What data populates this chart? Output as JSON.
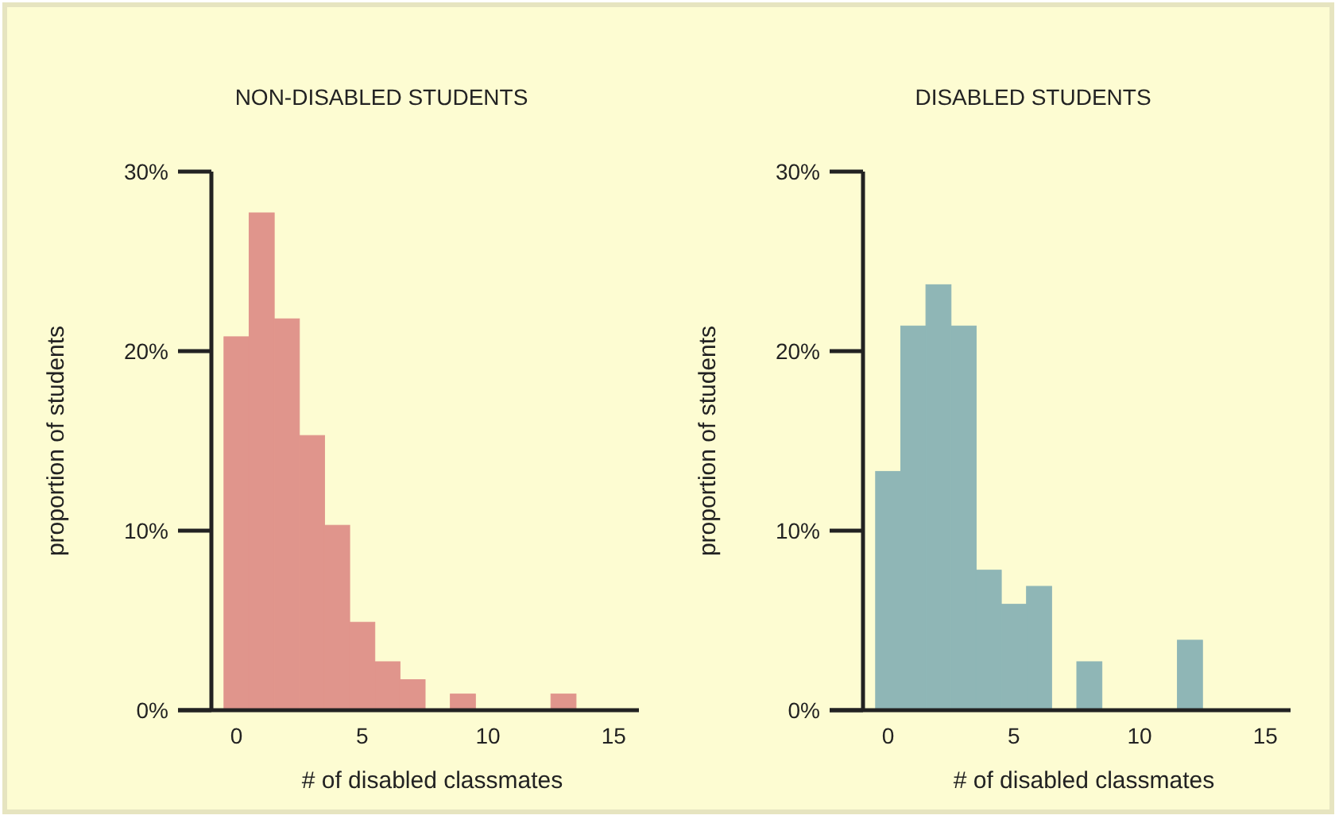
{
  "chart_data": [
    {
      "type": "histogram",
      "title": "NON-DISABLED STUDENTS",
      "xlabel": "# of disabled classmates",
      "ylabel": "proportion of students",
      "color": "#e0958c",
      "bins": [
        -0.5,
        0.5,
        1.5,
        2.5,
        3.5,
        4.5,
        5.5,
        6.5,
        7.5,
        8.5,
        9.5,
        10.5,
        11.5,
        12.5,
        13.5
      ],
      "values": [
        20.8,
        27.7,
        21.8,
        15.3,
        10.3,
        4.9,
        2.7,
        1.7,
        0,
        0.9,
        0,
        0,
        0,
        0.9
      ],
      "xlim": [
        -1,
        16
      ],
      "xticks": [
        0,
        5,
        10,
        15
      ],
      "ylim": [
        0,
        30
      ],
      "yticks": [
        {
          "value": 0,
          "label": "0%"
        },
        {
          "value": 10,
          "label": "10%"
        },
        {
          "value": 20,
          "label": "20%"
        },
        {
          "value": 30,
          "label": "30%"
        }
      ],
      "grid": false
    },
    {
      "type": "histogram",
      "title": "DISABLED STUDENTS",
      "xlabel": "# of disabled classmates",
      "ylabel": "proportion of students",
      "color": "#8fb6b6",
      "bins": [
        -0.5,
        0.5,
        1.5,
        2.5,
        3.5,
        4.5,
        5.5,
        6.5,
        7.5,
        8.5,
        9.5,
        10.5,
        11.5,
        12.5
      ],
      "values": [
        13.3,
        21.4,
        23.7,
        21.4,
        7.8,
        5.9,
        6.9,
        0,
        2.7,
        0,
        0,
        0,
        3.9
      ],
      "xlim": [
        -1,
        16
      ],
      "xticks": [
        0,
        5,
        10,
        15
      ],
      "ylim": [
        0,
        30
      ],
      "yticks": [
        {
          "value": 0,
          "label": "0%"
        },
        {
          "value": 10,
          "label": "10%"
        },
        {
          "value": 20,
          "label": "20%"
        },
        {
          "value": 30,
          "label": "30%"
        }
      ],
      "grid": false
    }
  ]
}
